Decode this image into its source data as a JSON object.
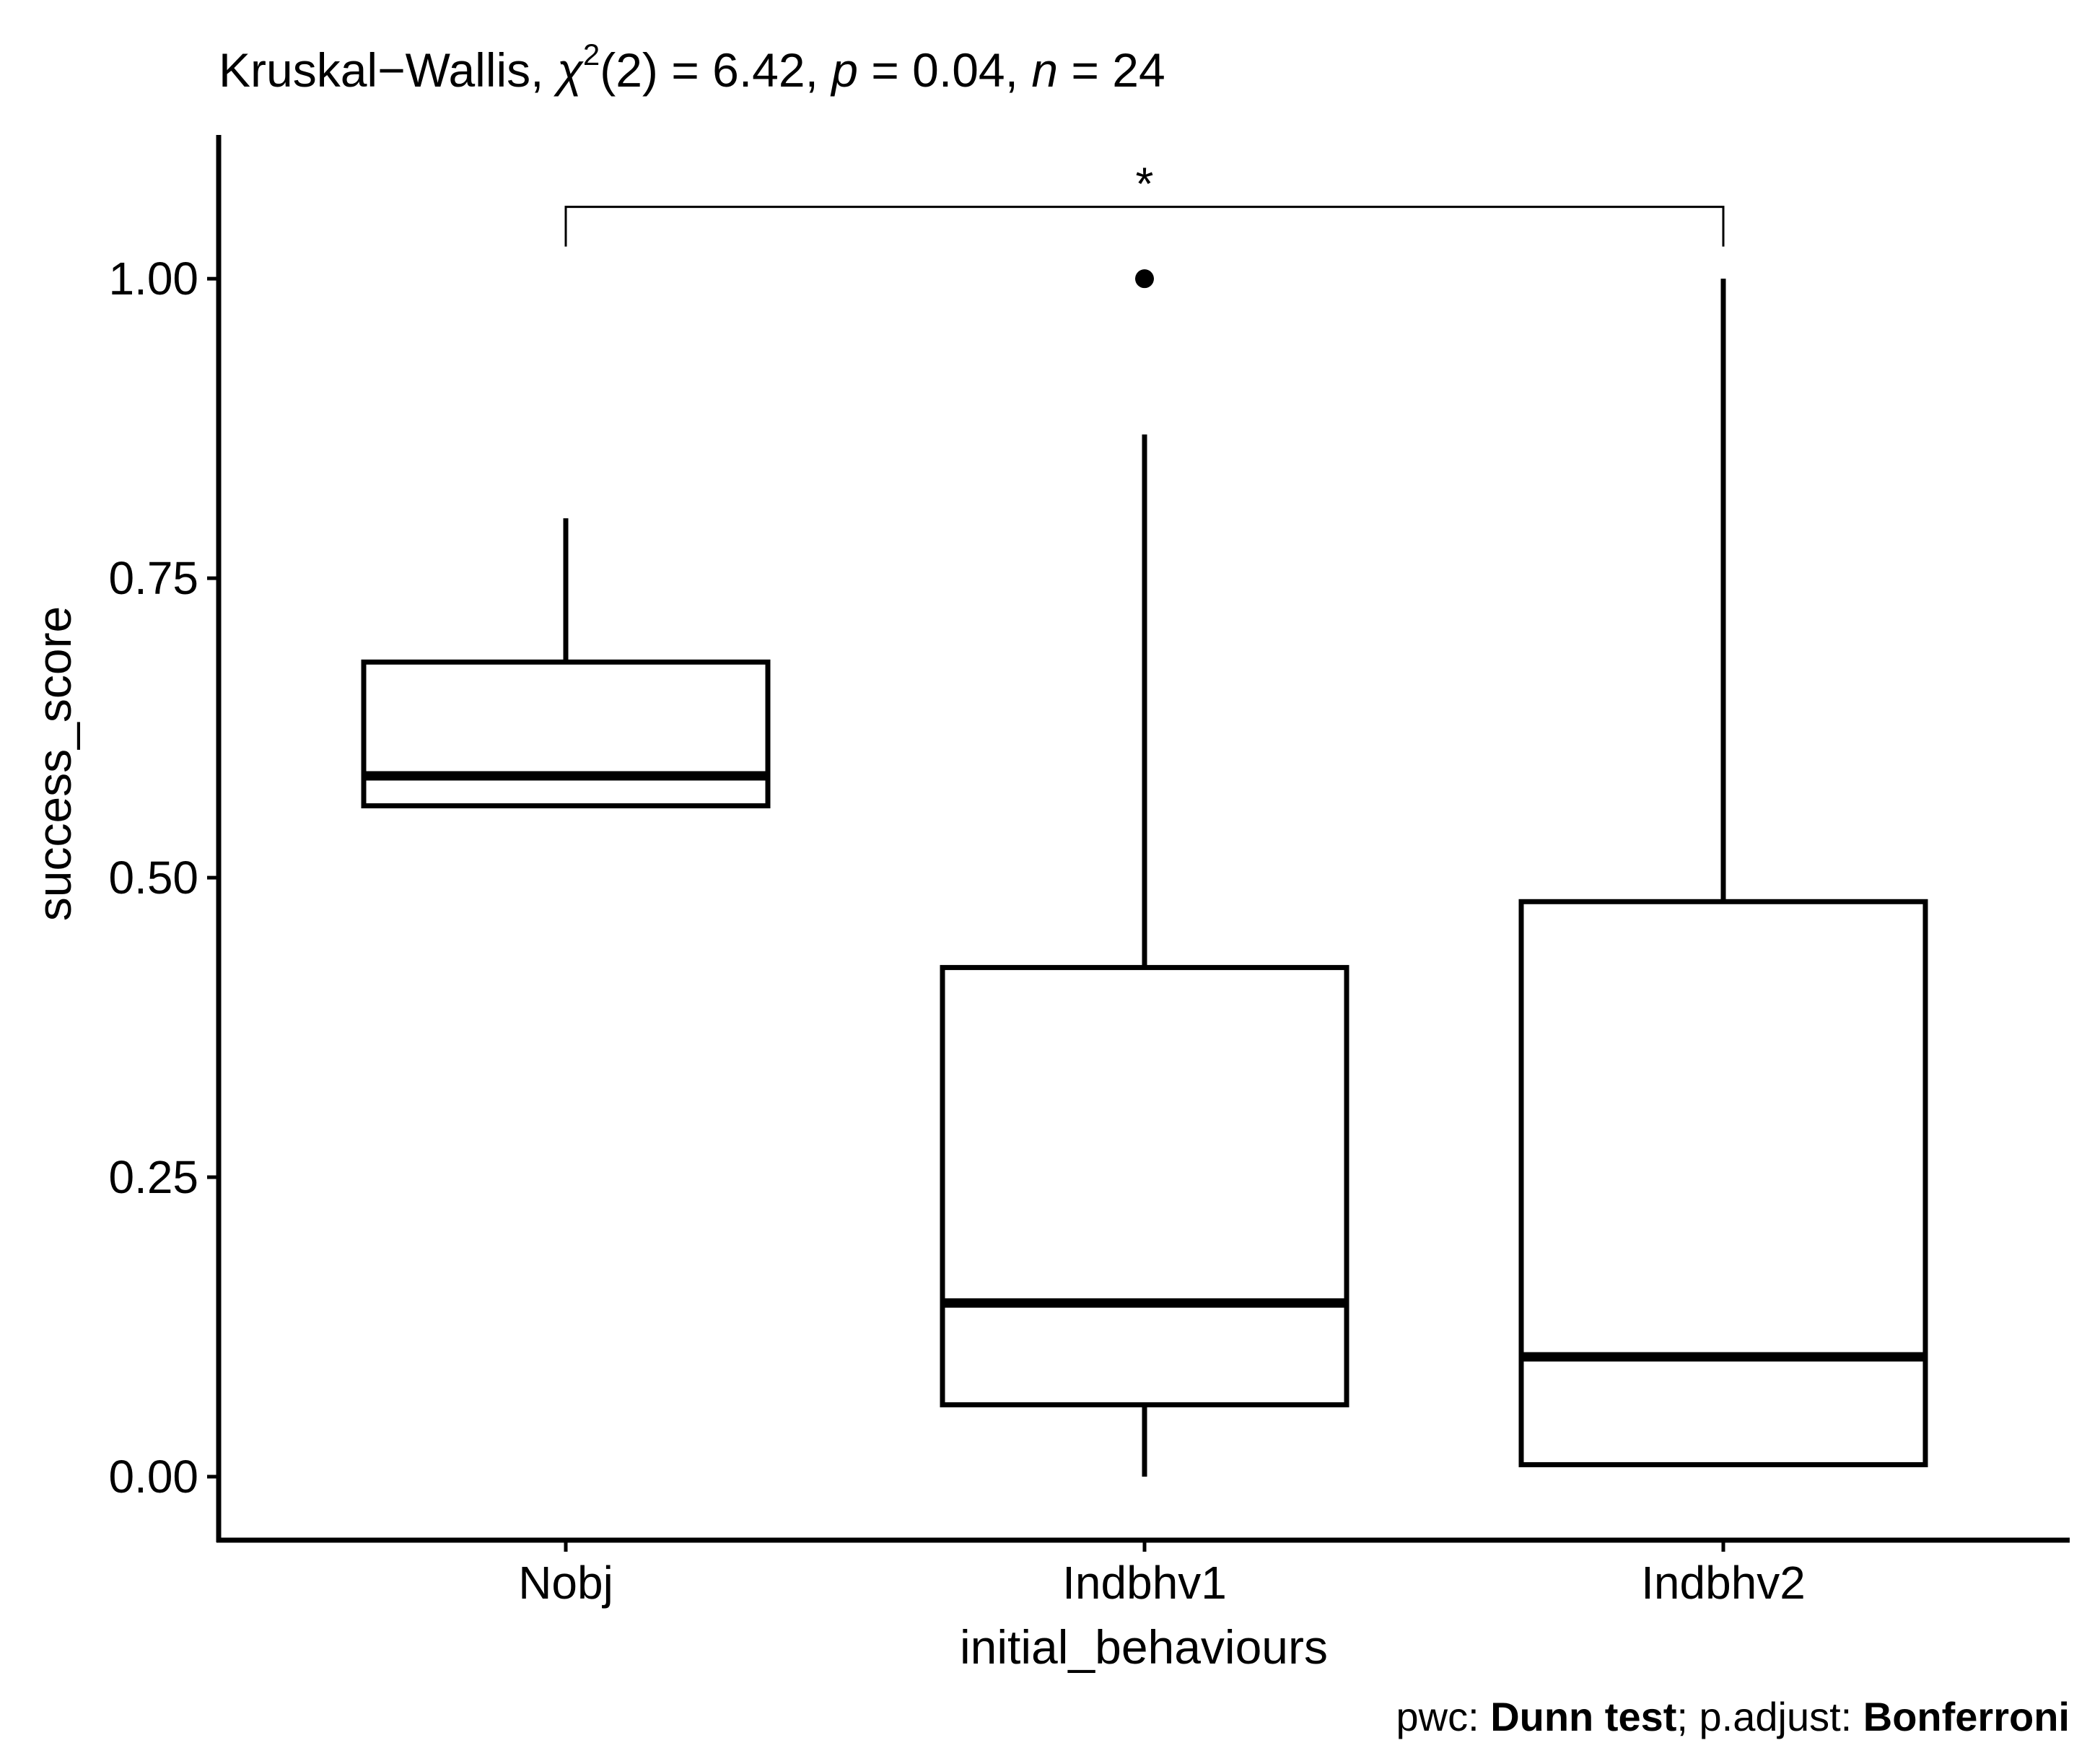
{
  "chart_data": {
    "type": "box",
    "title": {
      "prefix": "Kruskal−Wallis, ",
      "chi": "χ",
      "chi_sup": "2",
      "df": "(2) = 6.42, ",
      "p_label": "p",
      "p_value": " = 0.04, ",
      "n_label": "n",
      "n_value": " = 24"
    },
    "xlabel": "initial_behaviours",
    "ylabel": "success_score",
    "ylim": [
      -0.053,
      1.12
    ],
    "y_ticks": [
      0.0,
      0.25,
      0.5,
      0.75,
      1.0
    ],
    "y_tick_labels": [
      "0.00",
      "0.25",
      "0.50",
      "0.75",
      "1.00"
    ],
    "categories": [
      "Nobj",
      "Indbhv1",
      "Indbhv2"
    ],
    "boxes": [
      {
        "category": "Nobj",
        "whisker_low": 0.56,
        "q1": 0.56,
        "median": 0.585,
        "q3": 0.68,
        "whisker_high": 0.8,
        "outliers": []
      },
      {
        "category": "Indbhv1",
        "whisker_low": 0.0,
        "q1": 0.06,
        "median": 0.145,
        "q3": 0.425,
        "whisker_high": 0.87,
        "outliers": [
          1.0
        ]
      },
      {
        "category": "Indbhv2",
        "whisker_low": 0.01,
        "q1": 0.01,
        "median": 0.1,
        "q3": 0.48,
        "whisker_high": 1.0,
        "outliers": []
      }
    ],
    "significance": {
      "from": "Nobj",
      "to": "Indbhv2",
      "label": "*",
      "y": 1.06
    },
    "caption": {
      "pwc_prefix": "pwc: ",
      "pwc_method": "Dunn test",
      "adjust_prefix": "; p.adjust: ",
      "adjust_method": "Bonferroni"
    },
    "grid": false,
    "legend": "none"
  }
}
